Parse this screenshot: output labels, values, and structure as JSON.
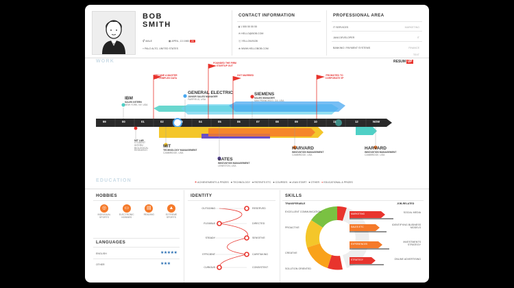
{
  "profile": {
    "first_name": "BOB",
    "last_name": "SMITH",
    "gender": "MALE",
    "birthday": "APRIL, 13 1985",
    "age": "28",
    "location": "PALO ALTO, UNITED STATES"
  },
  "contact": {
    "title": "CONTACT INFORMATION",
    "phone": "1 555 55 55 55",
    "email": "HELLO@BOB.COM",
    "skype": "YELLOW.BOB",
    "website": "WWW.HELLOBOB.COM"
  },
  "professional": {
    "title": "PROFESSIONAL AREA",
    "items": [
      {
        "label": "IT SERVICES",
        "value": "MARKETING"
      },
      {
        "label": "JAVA DEVELOPER",
        "value": "IT"
      },
      {
        "label": "BANKING / PAYMENT SYSTEMS",
        "value": "FINANCE"
      },
      {
        "label": "",
        "value": "TEXT"
      }
    ]
  },
  "work": {
    "title": "WORK",
    "brand": "RESUM",
    "brand_badge": "UP",
    "years": [
      "99",
      "00",
      "01",
      "02",
      "03",
      "04",
      "05",
      "06",
      "07",
      "08",
      "09",
      "10",
      "11",
      "12",
      "NOW"
    ],
    "flags": [
      {
        "text": "BECAME A MASTER OF COMPLEX DATA"
      },
      {
        "text": "FOUNDED THE FIRM STARTUP OUT"
      },
      {
        "text": "GOT MARRIED"
      },
      {
        "text": "PROMOTED TO CORPORATE VP"
      }
    ],
    "top_jobs": [
      {
        "company": "IBM",
        "role": "SALES INTERN",
        "loc": "NEW YORK, NY, USA"
      },
      {
        "company": "GENERAL ELECTRIC",
        "role": "JUNIOR SALES MANAGER",
        "loc": "FAIRFIELD, USA"
      },
      {
        "company": "SIEMENS",
        "role": "SALES MANAGER",
        "loc": "SAN FRANCISCO, CA, USA"
      }
    ],
    "bottom_jobs": [
      {
        "company": "MIT",
        "role": "TECHNOLOGY MANAGEMENT",
        "loc": "CAMBRIDGE, USA"
      },
      {
        "company": "BATES",
        "role": "INNOVATION MANAGEMENT",
        "loc": "LEWISTON, USA"
      },
      {
        "company": "HARVARD",
        "role": "INNOVATION MANAGEMENT",
        "loc": "CAMBRIDGE, USA"
      },
      {
        "company": "HARVARD",
        "role": "INNOVATION MANAGEMENT",
        "loc": "CAMBRIDGE, USA"
      }
    ],
    "mit_lab": {
      "title": "MIT LAB",
      "text": "STUDENT INTERN BIOLOGICAL RESEARCH"
    }
  },
  "education": {
    "title": "EDUCATION",
    "legend": [
      "ACHIEVEMENTS & PRIZES",
      "TECHNOLOGY",
      "PATENTS ETC",
      "COURSES",
      "LEAN START",
      "OTHER",
      "EDUCATIONAL & PRIZES"
    ]
  },
  "hobbies": {
    "title": "HOBBIES",
    "items": [
      "INDIVIDUAL SPORTS",
      "ELECTRONIC HOBBIES",
      "READING",
      "EXTREME SPORTS"
    ]
  },
  "languages": {
    "title": "LANGUAGES",
    "items": [
      {
        "name": "ENGLISH",
        "stars": "★★★★★",
        "level": 5
      },
      {
        "name": "OTHER",
        "stars": "★★★",
        "level": 3
      }
    ]
  },
  "identity": {
    "title": "IDENTITY",
    "rows": [
      {
        "left": "OUTGOING",
        "right": "RESERVED"
      },
      {
        "left": "FLEXIBLE",
        "right": "DIRECTED"
      },
      {
        "left": "STEADY",
        "right": "SENSITIVE"
      },
      {
        "left": "EFFICIENT",
        "right": "CARETAKING"
      },
      {
        "left": "CURIOUS",
        "right": "CONSISTENT"
      }
    ]
  },
  "skills": {
    "title": "SKILLS",
    "transferable_title": "TRANSFERABLE",
    "job_title": "JOB-RELATED",
    "transferable": [
      "EXCELLENT COMMUNICATION",
      "PROACTIVE",
      "CREATIVE",
      "SOLUTION ORIENTED"
    ],
    "bars": [
      "MARKETING",
      "SALES ETC",
      "EXPERIENCES",
      "STRATEGY"
    ],
    "job": [
      "SOCIAL MEDIA",
      "IDENTIFYING BUSINESS MODELS",
      "INVESTMENTS STRATEGY",
      "ONLINE ADVERTISING"
    ]
  },
  "colors": {
    "accent": "#e8342d",
    "teal": "#4fd0c6",
    "blue": "#4aa8f0",
    "purple": "#6a4fc4",
    "yellow": "#f4c62a",
    "orange": "#f57a2a",
    "dark": "#2a2a2a"
  }
}
